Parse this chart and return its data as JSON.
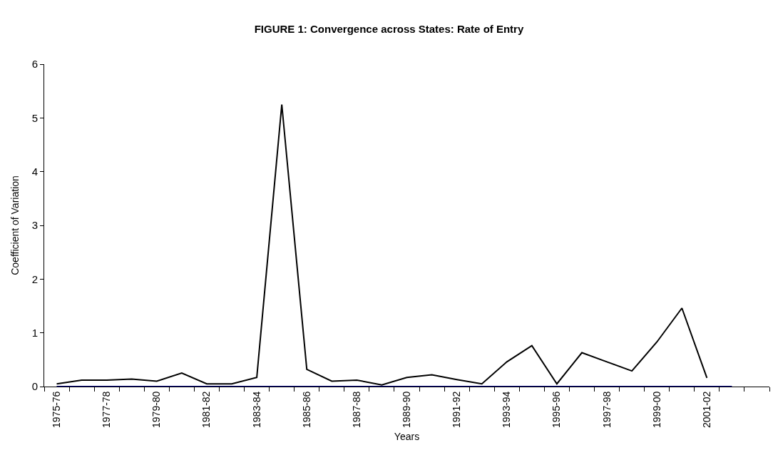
{
  "chart_data": {
    "type": "line",
    "title": "FIGURE 1: Convergence across States: Rate of Entry",
    "xlabel": "Years",
    "ylabel": "Coefficient of Variation",
    "categories": [
      "1975-76",
      null,
      "1977-78",
      null,
      "1979-80",
      null,
      "1981-82",
      null,
      "1983-84",
      null,
      "1985-86",
      null,
      "1987-88",
      null,
      "1989-90",
      null,
      "1991-92",
      null,
      "1993-94",
      null,
      "1995-96",
      null,
      "1997-98",
      null,
      "1999-00",
      null,
      "2001-02",
      null
    ],
    "series": [
      {
        "color": "#000080",
        "values": [
          0,
          0,
          0,
          0,
          0,
          0,
          0,
          0,
          0,
          0,
          0,
          0,
          0,
          0,
          0,
          0,
          0,
          0,
          0,
          0,
          0,
          0,
          0,
          0,
          0,
          0,
          0,
          0
        ]
      },
      {
        "color": "#000000",
        "values": [
          0.05,
          0.12,
          0.12,
          0.14,
          0.1,
          0.25,
          0.05,
          0.05,
          0.17,
          5.25,
          0.32,
          0.1,
          0.12,
          0.03,
          0.17,
          0.22,
          0.13,
          0.05,
          0.46,
          0.76,
          0.05,
          0.63,
          0.46,
          0.29,
          0.83,
          1.46,
          0.16,
          null
        ]
      }
    ],
    "ylim": [
      0,
      6
    ],
    "yticks": [
      0,
      1,
      2,
      3,
      4,
      5,
      6
    ],
    "grid": false,
    "marker": "none",
    "line_style": "solid"
  }
}
